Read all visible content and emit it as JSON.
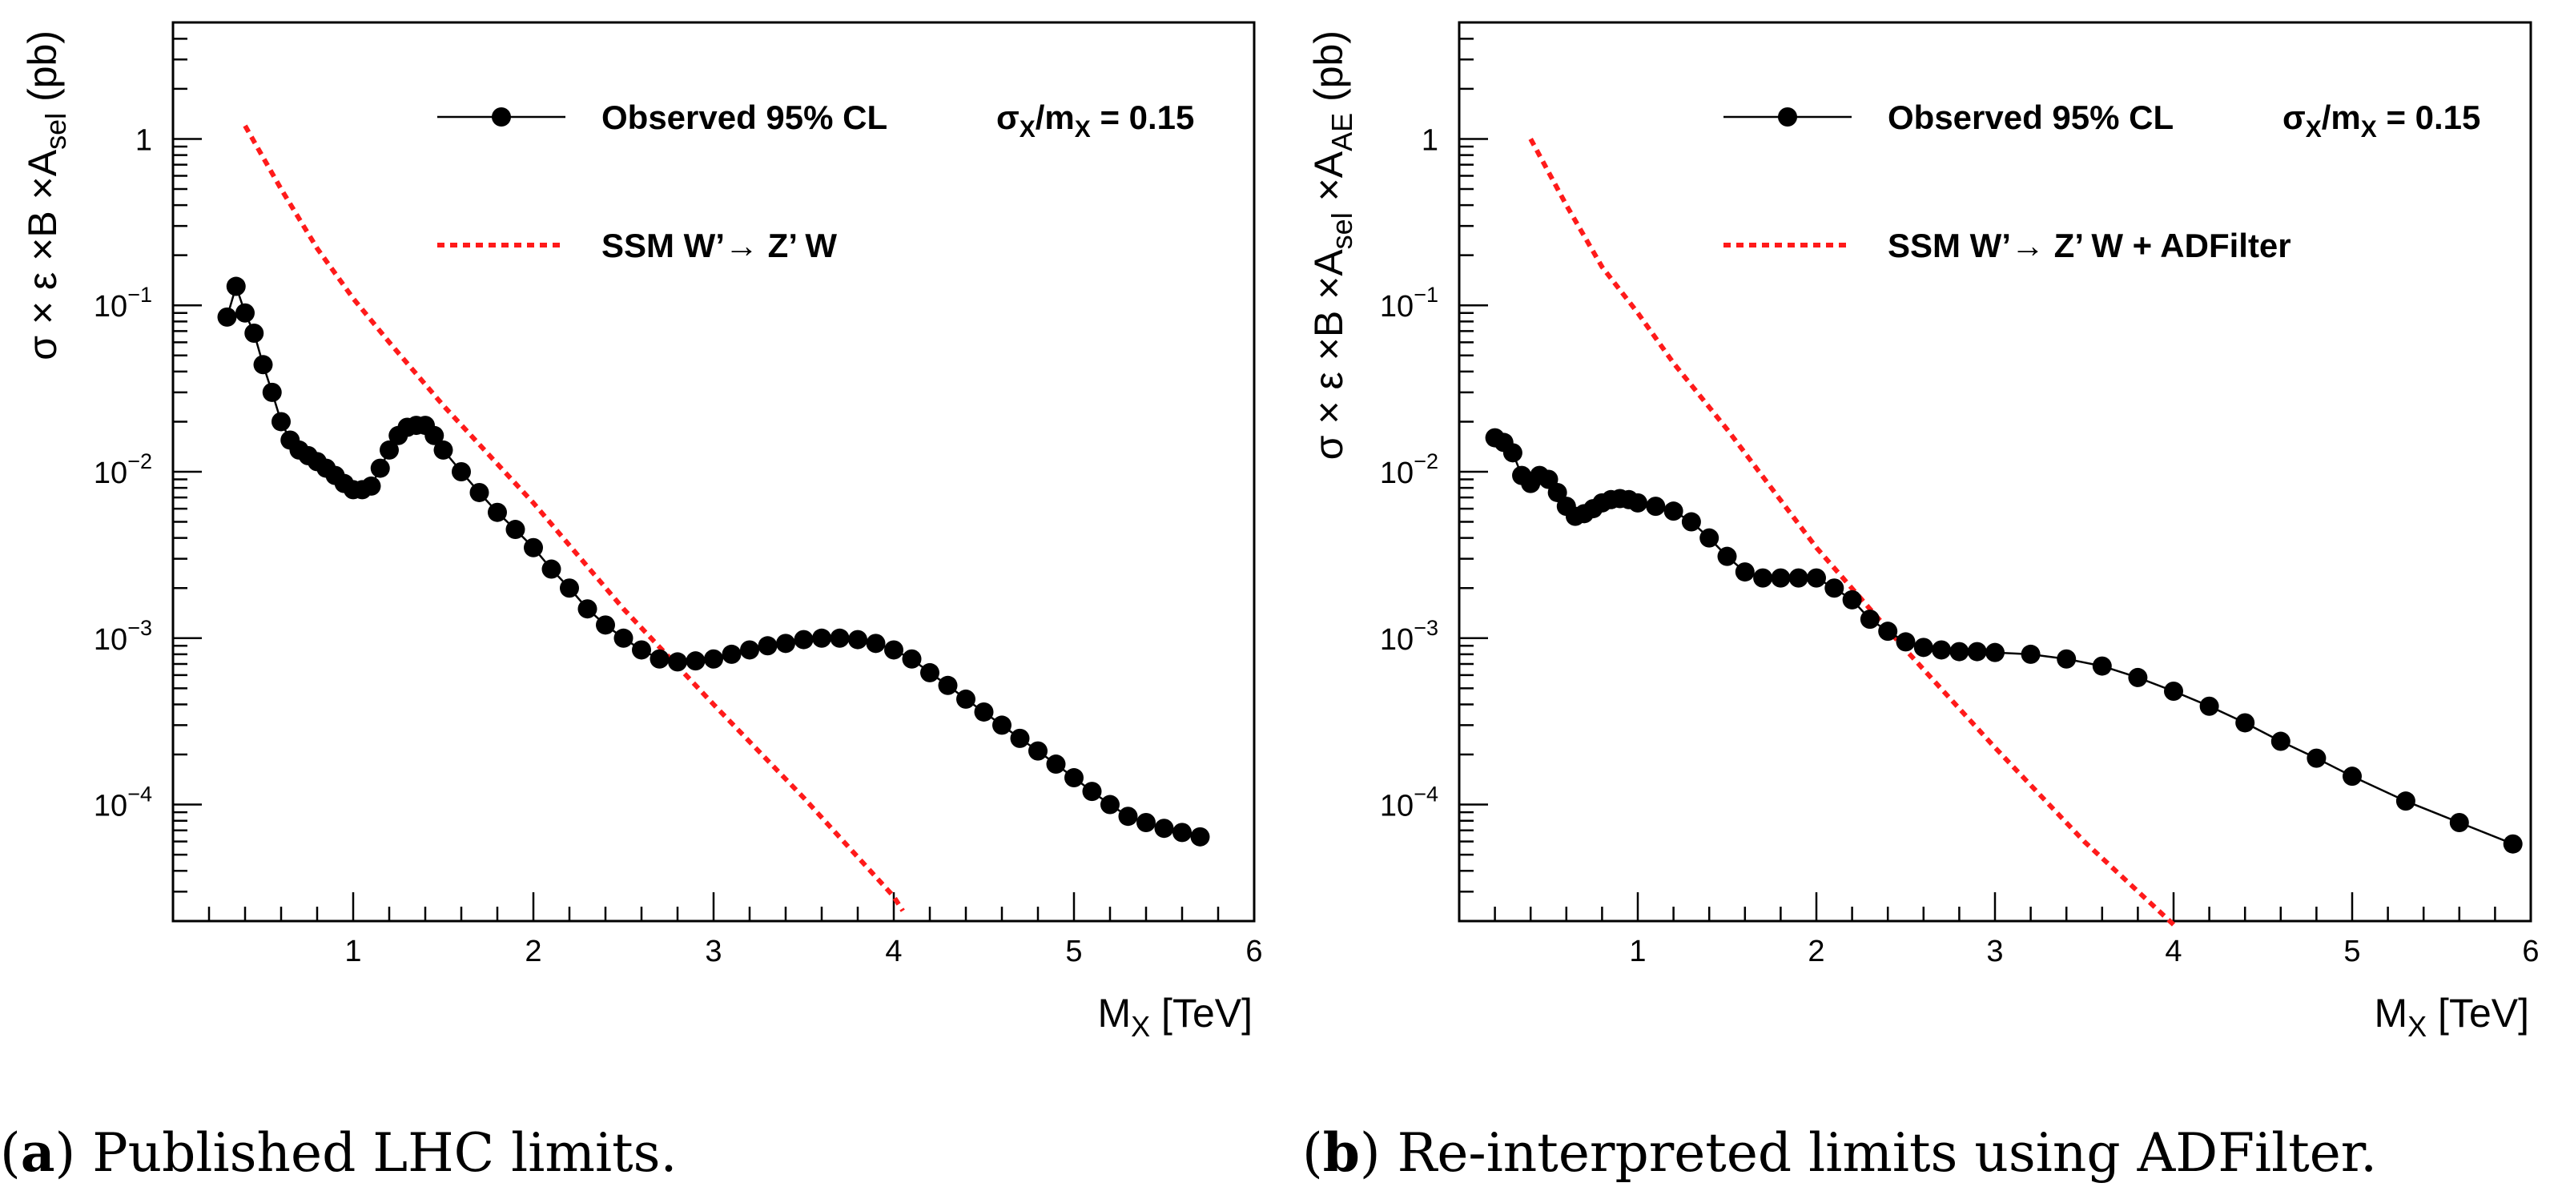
{
  "colors": {
    "observed": "#000000",
    "theory": "#ff1a1a",
    "frame": "#000000"
  },
  "chart_data": [
    {
      "type": "line",
      "panel": "a",
      "caption_label": "a",
      "caption_text": "Published LHC limits.",
      "xlabel_main": "M",
      "xlabel_sub": "X",
      "xlabel_tail": " [TeV]",
      "ylabel_parts": [
        {
          "t": "σ  ×  ε  ×B  ×A",
          "s": ""
        },
        {
          "t": "sel",
          "s": "sub"
        },
        {
          "t": "  (pb)",
          "s": ""
        }
      ],
      "x_range": [
        0.0,
        6.0
      ],
      "y_range_log10": [
        -4.7,
        0.7
      ],
      "x_ticks": [
        1,
        2,
        3,
        4,
        5,
        6
      ],
      "x_tick_labels": [
        "1",
        "2",
        "3",
        "4",
        "5",
        "6"
      ],
      "y_ticks": [
        {
          "exp": 0,
          "base": "1",
          "sup": ""
        },
        {
          "exp": -1,
          "base": "10",
          "sup": "−1"
        },
        {
          "exp": -2,
          "base": "10",
          "sup": "−2"
        },
        {
          "exp": -3,
          "base": "10",
          "sup": "−3"
        },
        {
          "exp": -4,
          "base": "10",
          "sup": "−4"
        }
      ],
      "legend": {
        "observed_label": "Observed 95% CL",
        "param_prefix": "σ",
        "param_sub1": "X",
        "param_mid": "/m",
        "param_sub2": "X",
        "param_suffix": " = 0.15",
        "theory_label": "SSM W’→ Z’ W"
      },
      "series": [
        {
          "name": "Observed 95% CL",
          "style": "markers-line",
          "x": [
            0.3,
            0.35,
            0.4,
            0.45,
            0.5,
            0.55,
            0.6,
            0.65,
            0.7,
            0.75,
            0.8,
            0.85,
            0.9,
            0.95,
            1.0,
            1.05,
            1.1,
            1.15,
            1.2,
            1.25,
            1.3,
            1.35,
            1.4,
            1.45,
            1.5,
            1.6,
            1.7,
            1.8,
            1.9,
            2.0,
            2.1,
            2.2,
            2.3,
            2.4,
            2.5,
            2.6,
            2.7,
            2.8,
            2.9,
            3.0,
            3.1,
            3.2,
            3.3,
            3.4,
            3.5,
            3.6,
            3.7,
            3.8,
            3.9,
            4.0,
            4.1,
            4.2,
            4.3,
            4.4,
            4.5,
            4.6,
            4.7,
            4.8,
            4.9,
            5.0,
            5.1,
            5.2,
            5.3,
            5.4,
            5.5,
            5.6,
            5.7
          ],
          "y": [
            0.085,
            0.13,
            0.09,
            0.068,
            0.044,
            0.03,
            0.02,
            0.0155,
            0.0135,
            0.0125,
            0.0115,
            0.0105,
            0.0095,
            0.0085,
            0.0078,
            0.0078,
            0.0082,
            0.0105,
            0.0135,
            0.0165,
            0.0185,
            0.019,
            0.019,
            0.0165,
            0.0135,
            0.01,
            0.0075,
            0.0057,
            0.0045,
            0.0035,
            0.0026,
            0.002,
            0.0015,
            0.0012,
            0.001,
            0.00085,
            0.00075,
            0.00072,
            0.00073,
            0.00075,
            0.0008,
            0.00085,
            0.0009,
            0.00093,
            0.00098,
            0.001,
            0.001,
            0.00098,
            0.00093,
            0.00085,
            0.00075,
            0.00062,
            0.00052,
            0.00043,
            0.00036,
            0.0003,
            0.00025,
            0.00021,
            0.000175,
            0.000145,
            0.00012,
            0.0001,
            8.5e-05,
            7.8e-05,
            7.2e-05,
            6.8e-05,
            6.4e-05
          ]
        },
        {
          "name": "SSM W’→ Z’ W",
          "style": "dashed",
          "x": [
            0.4,
            0.6,
            0.8,
            1.0,
            1.2,
            1.5,
            2.0,
            2.5,
            3.0,
            3.5,
            4.0,
            4.05
          ],
          "y": [
            1.2,
            0.5,
            0.22,
            0.11,
            0.06,
            0.025,
            0.0065,
            0.0015,
            0.0004,
            0.00011,
            2.8e-05,
            2.3e-05
          ]
        }
      ]
    },
    {
      "type": "line",
      "panel": "b",
      "caption_label": "b",
      "caption_text": "Re-interpreted limits using ADFilter.",
      "xlabel_main": "M",
      "xlabel_sub": "X",
      "xlabel_tail": " [TeV]",
      "ylabel_parts": [
        {
          "t": "σ  ×  ε  ×B  ×A",
          "s": ""
        },
        {
          "t": "sel",
          "s": "sub"
        },
        {
          "t": "  ×A",
          "s": ""
        },
        {
          "t": "AE",
          "s": "sub"
        },
        {
          "t": "  (pb)",
          "s": ""
        }
      ],
      "x_range": [
        0.0,
        6.0
      ],
      "y_range_log10": [
        -4.7,
        0.7
      ],
      "x_ticks": [
        1,
        2,
        3,
        4,
        5,
        6
      ],
      "x_tick_labels": [
        "1",
        "2",
        "3",
        "4",
        "5",
        "6"
      ],
      "y_ticks": [
        {
          "exp": 0,
          "base": "1",
          "sup": ""
        },
        {
          "exp": -1,
          "base": "10",
          "sup": "−1"
        },
        {
          "exp": -2,
          "base": "10",
          "sup": "−2"
        },
        {
          "exp": -3,
          "base": "10",
          "sup": "−3"
        },
        {
          "exp": -4,
          "base": "10",
          "sup": "−4"
        }
      ],
      "legend": {
        "observed_label": "Observed 95% CL",
        "param_prefix": "σ",
        "param_sub1": "X",
        "param_mid": "/m",
        "param_sub2": "X",
        "param_suffix": " = 0.15",
        "theory_label": "SSM W’→ Z’ W + ADFilter"
      },
      "series": [
        {
          "name": "Observed 95% CL",
          "style": "markers-line",
          "x": [
            0.2,
            0.25,
            0.3,
            0.35,
            0.4,
            0.45,
            0.5,
            0.55,
            0.6,
            0.65,
            0.7,
            0.75,
            0.8,
            0.85,
            0.9,
            0.95,
            1.0,
            1.1,
            1.2,
            1.3,
            1.4,
            1.5,
            1.6,
            1.7,
            1.8,
            1.9,
            2.0,
            2.1,
            2.2,
            2.3,
            2.4,
            2.5,
            2.6,
            2.7,
            2.8,
            2.9,
            3.0,
            3.2,
            3.4,
            3.6,
            3.8,
            4.0,
            4.2,
            4.4,
            4.6,
            4.8,
            5.0,
            5.3,
            5.6,
            5.9
          ],
          "y": [
            0.016,
            0.015,
            0.013,
            0.0095,
            0.0085,
            0.0095,
            0.009,
            0.0075,
            0.0062,
            0.0054,
            0.0056,
            0.006,
            0.0065,
            0.0068,
            0.0069,
            0.0068,
            0.0065,
            0.0062,
            0.0058,
            0.005,
            0.004,
            0.0031,
            0.0025,
            0.0023,
            0.0023,
            0.0023,
            0.0023,
            0.002,
            0.0017,
            0.0013,
            0.0011,
            0.00095,
            0.00088,
            0.00085,
            0.00083,
            0.00083,
            0.00082,
            0.0008,
            0.00075,
            0.00068,
            0.00058,
            0.00048,
            0.00039,
            0.00031,
            0.00024,
            0.00019,
            0.000148,
            0.000105,
            7.8e-05,
            5.8e-05
          ]
        },
        {
          "name": "SSM W’→ Z’ W + ADFilter",
          "style": "dashed",
          "x": [
            0.4,
            0.6,
            0.8,
            1.0,
            1.2,
            1.5,
            2.0,
            2.5,
            3.0,
            3.5,
            4.0
          ],
          "y": [
            1.0,
            0.4,
            0.17,
            0.09,
            0.045,
            0.018,
            0.0035,
            0.00085,
            0.00022,
            6e-05,
            1.9e-05
          ]
        }
      ]
    }
  ]
}
